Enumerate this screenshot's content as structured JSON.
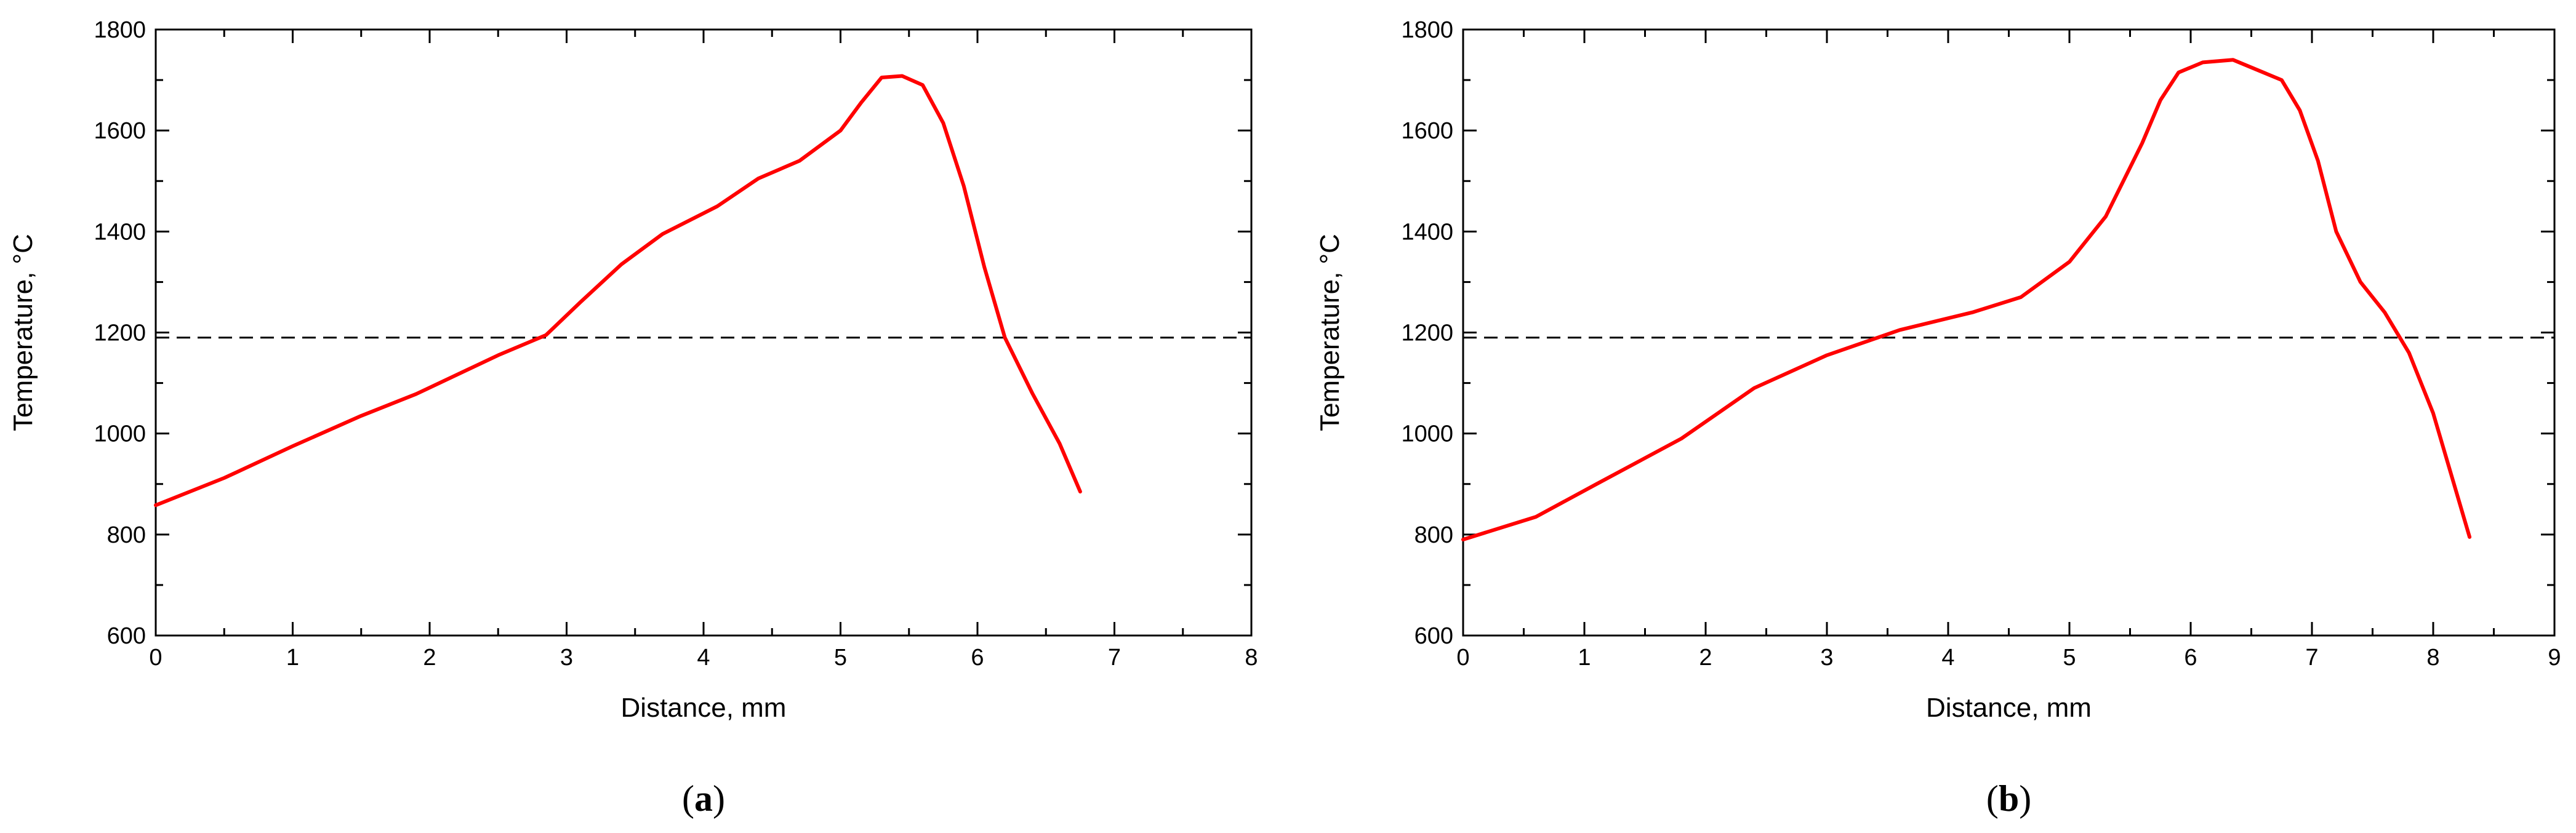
{
  "chart_data": [
    {
      "type": "line",
      "panel_label": "a",
      "xlabel": "Distance, mm",
      "ylabel": "Temperature, °C",
      "xlim": [
        0,
        8
      ],
      "ylim": [
        600,
        1800
      ],
      "x_ticks": [
        0,
        1,
        2,
        3,
        4,
        5,
        6,
        7,
        8
      ],
      "y_ticks": [
        600,
        800,
        1000,
        1200,
        1400,
        1600,
        1800
      ],
      "grid": false,
      "reference_line": {
        "y": 1190,
        "style": "dashed",
        "color": "#000000"
      },
      "series": [
        {
          "color": "#ff0000",
          "x": [
            0,
            0.5,
            1.0,
            1.5,
            1.9,
            2.5,
            2.85,
            3.1,
            3.4,
            3.7,
            4.1,
            4.4,
            4.7,
            5.0,
            5.15,
            5.3,
            5.45,
            5.6,
            5.75,
            5.9,
            6.05,
            6.2,
            6.4,
            6.6,
            6.75
          ],
          "y": [
            858,
            912,
            975,
            1035,
            1078,
            1155,
            1195,
            1260,
            1335,
            1395,
            1450,
            1505,
            1540,
            1600,
            1655,
            1705,
            1708,
            1690,
            1615,
            1490,
            1330,
            1190,
            1080,
            980,
            885
          ]
        }
      ]
    },
    {
      "type": "line",
      "panel_label": "b",
      "xlabel": "Distance, mm",
      "ylabel": "Temperature, °C",
      "xlim": [
        0,
        9
      ],
      "ylim": [
        600,
        1800
      ],
      "x_ticks": [
        0,
        1,
        2,
        3,
        4,
        5,
        6,
        7,
        8,
        9
      ],
      "y_ticks": [
        600,
        800,
        1000,
        1200,
        1400,
        1600,
        1800
      ],
      "grid": false,
      "reference_line": {
        "y": 1190,
        "style": "dashed",
        "color": "#000000"
      },
      "series": [
        {
          "color": "#ff0000",
          "x": [
            0,
            0.6,
            1.1,
            1.8,
            2.4,
            3.0,
            3.6,
            4.2,
            4.6,
            5.0,
            5.3,
            5.6,
            5.75,
            5.9,
            6.1,
            6.35,
            6.55,
            6.75,
            6.9,
            7.05,
            7.2,
            7.4,
            7.6,
            7.8,
            8.0,
            8.3
          ],
          "y": [
            790,
            835,
            900,
            990,
            1090,
            1155,
            1205,
            1240,
            1270,
            1340,
            1430,
            1575,
            1660,
            1715,
            1735,
            1740,
            1720,
            1700,
            1640,
            1540,
            1400,
            1300,
            1240,
            1160,
            1040,
            795
          ]
        }
      ]
    }
  ]
}
